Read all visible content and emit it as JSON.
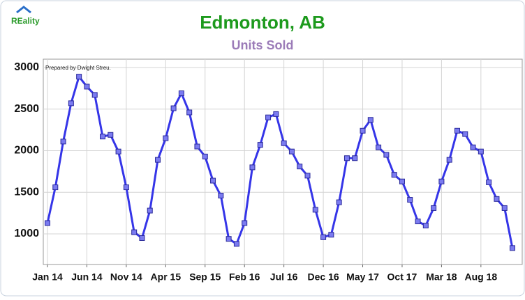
{
  "logo": "REality",
  "chart_data": {
    "type": "line",
    "title": "Edmonton, AB",
    "subtitle": "Units Sold",
    "annotation": "Prepared by Dwight Streu.",
    "categories": [
      "Jan 14",
      null,
      null,
      null,
      null,
      "Jun 14",
      null,
      null,
      null,
      null,
      "Nov 14",
      null,
      null,
      null,
      null,
      "Apr 15",
      null,
      null,
      null,
      null,
      "Sep 15",
      null,
      null,
      null,
      null,
      "Feb 16",
      null,
      null,
      null,
      null,
      "Jul 16",
      null,
      null,
      null,
      null,
      "Dec 16",
      null,
      null,
      null,
      null,
      "May 17",
      null,
      null,
      null,
      null,
      "Oct 17",
      null,
      null,
      null,
      null,
      "Mar 18",
      null,
      null,
      null,
      null,
      "Aug 18",
      null,
      null,
      null,
      null
    ],
    "series": [
      {
        "name": "Units Sold",
        "color": "#3535e8",
        "values": [
          1130,
          1560,
          2110,
          2570,
          2890,
          2770,
          2670,
          2170,
          2190,
          1990,
          1560,
          1020,
          950,
          1280,
          1890,
          2150,
          2510,
          2690,
          2460,
          2050,
          1930,
          1640,
          1460,
          940,
          880,
          1130,
          1800,
          2070,
          2400,
          2440,
          2090,
          1990,
          1810,
          1700,
          1290,
          960,
          990,
          1380,
          1910,
          1910,
          2240,
          2370,
          2040,
          1950,
          1710,
          1630,
          1410,
          1150,
          1100,
          1310,
          1630,
          1890,
          2240,
          2200,
          2040,
          1990,
          1620,
          1420,
          1310,
          830
        ]
      }
    ],
    "ylim": [
      632,
      3100
    ],
    "yticks": [
      1000,
      1500,
      2000,
      2500,
      3000
    ],
    "grid": true
  }
}
